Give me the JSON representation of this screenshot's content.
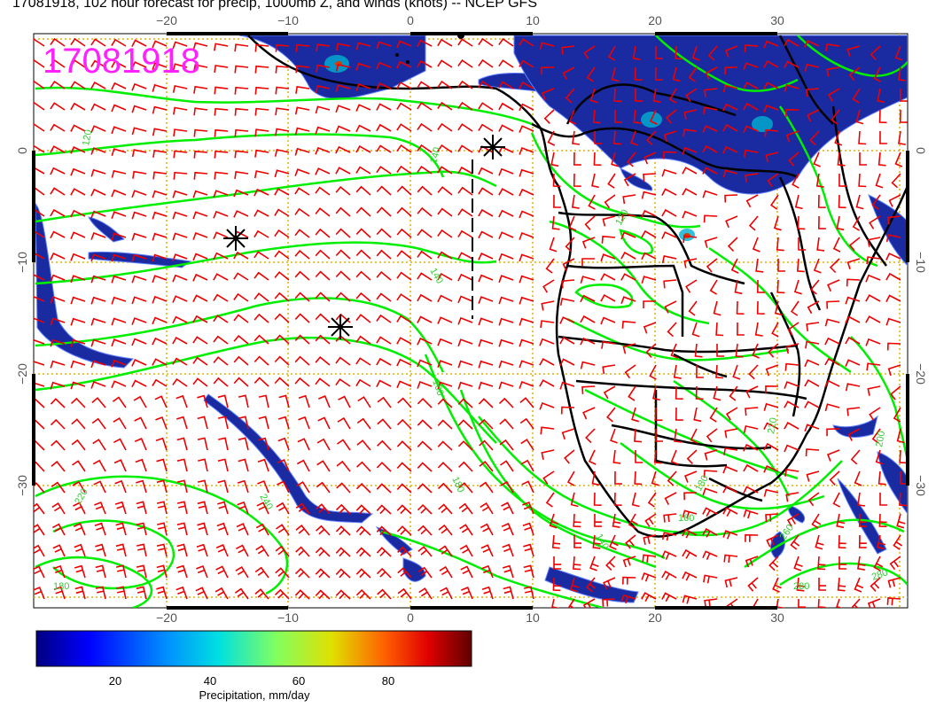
{
  "title": "17081918, 102 hour forecast for precip, 1000mb Z, and winds (knots) -- NCEP GFS",
  "stamp": "17081918",
  "axes": {
    "x_ticks": [
      "−20",
      "−10",
      "0",
      "10",
      "20",
      "30"
    ],
    "y_ticks": [
      "0",
      "−10",
      "−20",
      "−30"
    ]
  },
  "contour_labels": [
    "140",
    "140",
    "120",
    "120",
    "160",
    "180",
    "220",
    "180",
    "240",
    "280",
    "280",
    "260",
    "180",
    "200",
    "160",
    "220",
    "140"
  ],
  "colorbar": {
    "label": "Precipitation, mm/day",
    "ticks": [
      "20",
      "40",
      "60",
      "80"
    ],
    "range": [
      0,
      100
    ],
    "colors": [
      "#000080",
      "#0000ff",
      "#0080ff",
      "#00ffff",
      "#80ff80",
      "#ffff00",
      "#ff8000",
      "#ff0000",
      "#800000"
    ]
  },
  "colors": {
    "contour": "#00ee00",
    "wind_barb": "#ee0000",
    "precip": "#1a2aa0",
    "grid": "#e0b000",
    "stamp": "#ff22ff"
  }
}
